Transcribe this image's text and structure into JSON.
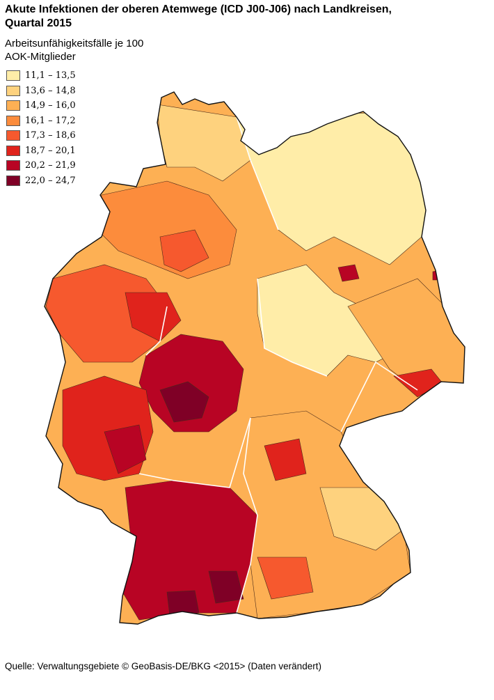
{
  "title": "Akute Infektionen der oberen Atemwege (ICD J00-J06) nach Landkreisen, Quartal 2015",
  "legend": {
    "title": "Arbeitsunfähigkeitsfälle je 100 AOK-Mitglieder",
    "classes": [
      {
        "label": "11,1 – 13,5",
        "color": "#FFEDA8"
      },
      {
        "label": "13,6 – 14,8",
        "color": "#FED27E"
      },
      {
        "label": "14,9 – 16,0",
        "color": "#FDB054"
      },
      {
        "label": "16,1 – 17,2",
        "color": "#FC8C3C"
      },
      {
        "label": "17,3 – 18,6",
        "color": "#F6592E"
      },
      {
        "label": "18,7 – 20,1",
        "color": "#E0231C"
      },
      {
        "label": "20,2 – 21,9",
        "color": "#B80424"
      },
      {
        "label": "22,0 – 24,7",
        "color": "#7F0026"
      }
    ]
  },
  "source": "Quelle: Verwaltungsgebiete © GeoBasis-DE/BKG <2015> (Daten verändert)",
  "colors": {
    "district_border": "#4a2a1a",
    "state_border": "#ffffff",
    "outline": "#111111"
  }
}
